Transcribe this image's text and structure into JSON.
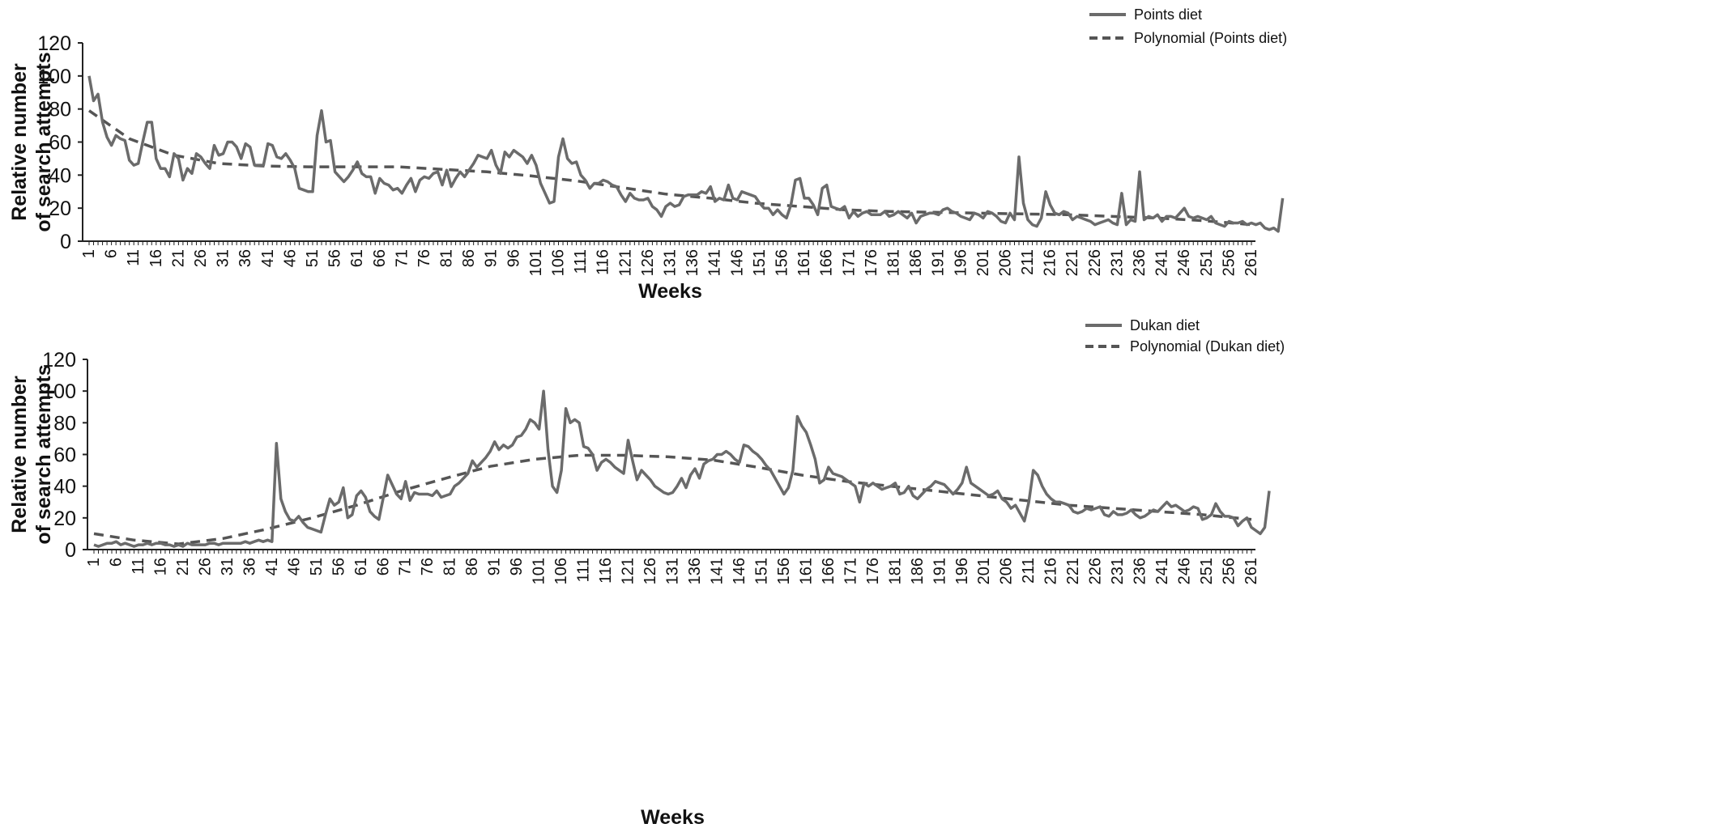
{
  "chart_data": [
    {
      "type": "line",
      "title": "",
      "xlabel": "Weeks",
      "ylabel": "Relative number of search attempts",
      "ylabel_lines": [
        "Relative number",
        "of search attempts"
      ],
      "ylim": [
        0,
        120
      ],
      "yticks": [
        0,
        20,
        40,
        60,
        80,
        100,
        120
      ],
      "xlim": [
        1,
        261
      ],
      "xtick_step": 5,
      "grid": false,
      "legend_position": "top-right",
      "series": [
        {
          "name": "Points diet",
          "style": "solid",
          "color": "#6b6b6b",
          "values": [
            100,
            85,
            89,
            72,
            63,
            58,
            64,
            62,
            61,
            49,
            46,
            47,
            60,
            72,
            72,
            50,
            44,
            44,
            39,
            53,
            50,
            37,
            44,
            41,
            53,
            51,
            47,
            44,
            58,
            52,
            53,
            60,
            60,
            57,
            50,
            59,
            57,
            46,
            46,
            46,
            59,
            58,
            51,
            50,
            53,
            49,
            44,
            32,
            31,
            30,
            30,
            64,
            79,
            60,
            61,
            42,
            39,
            36,
            39,
            43,
            48,
            41,
            39,
            39,
            29,
            38,
            35,
            34,
            31,
            32,
            29,
            34,
            38,
            30,
            37,
            39,
            38,
            41,
            42,
            34,
            43,
            33,
            38,
            42,
            39,
            43,
            47,
            52,
            51,
            50,
            55,
            46,
            41,
            54,
            51,
            55,
            53,
            51,
            47,
            52,
            46,
            35,
            29,
            23,
            24,
            51,
            62,
            50,
            47,
            48,
            40,
            37,
            32,
            35,
            35,
            37,
            36,
            34,
            33,
            28,
            24,
            29,
            26,
            25,
            25,
            26,
            21,
            19,
            15,
            21,
            23,
            21,
            22,
            27,
            28,
            28,
            28,
            30,
            29,
            33,
            24,
            26,
            25,
            34,
            26,
            25,
            30,
            29,
            28,
            27,
            23,
            20,
            20,
            16,
            19,
            16,
            14,
            22,
            37,
            38,
            26,
            26,
            22,
            16,
            32,
            34,
            21,
            20,
            19,
            21,
            14,
            18,
            15,
            17,
            18,
            16,
            16,
            16,
            18,
            15,
            16,
            18,
            16,
            14,
            17,
            11,
            15,
            16,
            17,
            17,
            16,
            19,
            20,
            18,
            17,
            15,
            14,
            13,
            17,
            16,
            14,
            18,
            17,
            15,
            12,
            11,
            17,
            13,
            51,
            23,
            13,
            10,
            9,
            14,
            30,
            22,
            17,
            16,
            18,
            17,
            13,
            15,
            14,
            13,
            12,
            10,
            11,
            12,
            13,
            11,
            10,
            29,
            10,
            13,
            12,
            42,
            13,
            15,
            14,
            16,
            12,
            15,
            15,
            14,
            17,
            20,
            15,
            14,
            15,
            14,
            13,
            15,
            11,
            10,
            9,
            12,
            11,
            11,
            12,
            10,
            11,
            10,
            11,
            8,
            7,
            8,
            6,
            26
          ],
          "trend_points": [
            [
              1,
              79
            ],
            [
              10,
              62
            ],
            [
              20,
              52
            ],
            [
              30,
              47
            ],
            [
              40,
              45.5
            ],
            [
              50,
              45
            ],
            [
              60,
              45
            ],
            [
              70,
              45
            ],
            [
              80,
              43.5
            ],
            [
              90,
              42
            ],
            [
              100,
              39.5
            ],
            [
              110,
              36.5
            ],
            [
              120,
              32.5
            ],
            [
              130,
              28.5
            ],
            [
              140,
              26
            ],
            [
              150,
              23
            ],
            [
              160,
              21
            ],
            [
              170,
              19
            ],
            [
              180,
              18
            ],
            [
              190,
              17.5
            ],
            [
              200,
              17
            ],
            [
              210,
              16.5
            ],
            [
              220,
              16
            ],
            [
              230,
              15
            ],
            [
              240,
              14
            ],
            [
              250,
              12.5
            ],
            [
              261,
              10
            ]
          ]
        },
        {
          "name": "Polynomial (Points diet)",
          "style": "dashed",
          "color": "#555555"
        }
      ]
    },
    {
      "type": "line",
      "title": "",
      "xlabel": "Weeks",
      "ylabel": "Relative number of search attempts",
      "ylabel_lines": [
        "Relative number",
        "of search attempts"
      ],
      "ylim": [
        0,
        120
      ],
      "yticks": [
        0,
        20,
        40,
        60,
        80,
        100,
        120
      ],
      "xlim": [
        1,
        261
      ],
      "xtick_step": 5,
      "grid": false,
      "legend_position": "top-right",
      "series": [
        {
          "name": "Dukan diet",
          "style": "solid",
          "color": "#6b6b6b",
          "values": [
            3,
            2,
            3,
            4,
            4,
            5,
            3,
            4,
            3,
            2,
            3,
            3,
            4,
            3,
            4,
            4,
            3,
            3,
            2,
            3,
            2,
            4,
            3,
            3,
            3,
            3,
            4,
            4,
            3,
            4,
            4,
            4,
            4,
            4,
            5,
            4,
            5,
            6,
            5,
            6,
            5,
            67,
            32,
            24,
            19,
            18,
            21,
            17,
            14,
            13,
            12,
            11,
            22,
            32,
            28,
            30,
            39,
            20,
            22,
            34,
            37,
            33,
            24,
            21,
            19,
            33,
            47,
            41,
            35,
            32,
            43,
            31,
            36,
            35,
            35,
            35,
            34,
            37,
            33,
            34,
            35,
            40,
            42,
            45,
            48,
            56,
            52,
            55,
            58,
            62,
            68,
            63,
            66,
            64,
            66,
            71,
            72,
            76,
            82,
            80,
            76,
            100,
            63,
            40,
            36,
            50,
            89,
            80,
            82,
            80,
            65,
            64,
            60,
            50,
            55,
            57,
            55,
            52,
            50,
            48,
            69,
            56,
            44,
            50,
            47,
            44,
            40,
            38,
            36,
            35,
            36,
            40,
            45,
            39,
            47,
            51,
            45,
            54,
            56,
            57,
            60,
            60,
            62,
            60,
            57,
            55,
            66,
            65,
            62,
            60,
            57,
            53,
            50,
            45,
            40,
            35,
            39,
            50,
            84,
            78,
            74,
            66,
            57,
            42,
            44,
            52,
            48,
            47,
            46,
            44,
            42,
            40,
            30,
            42,
            40,
            42,
            40,
            38,
            39,
            40,
            42,
            35,
            36,
            40,
            34,
            32,
            35,
            38,
            40,
            43,
            42,
            41,
            38,
            35,
            38,
            42,
            52,
            42,
            40,
            38,
            36,
            34,
            35,
            37,
            32,
            30,
            26,
            28,
            23,
            18,
            30,
            50,
            47,
            40,
            35,
            32,
            30,
            30,
            29,
            28,
            24,
            23,
            24,
            26,
            25,
            26,
            27,
            22,
            21,
            24,
            22,
            22,
            23,
            25,
            22,
            20,
            21,
            23,
            25,
            24,
            27,
            30,
            27,
            28,
            26,
            24,
            25,
            27,
            26,
            19,
            20,
            22,
            29,
            24,
            21,
            21,
            20,
            15,
            18,
            20,
            14,
            12,
            10,
            14,
            37
          ],
          "trend_points": [
            [
              1,
              10
            ],
            [
              10,
              6
            ],
            [
              20,
              3.5
            ],
            [
              30,
              7
            ],
            [
              40,
              13
            ],
            [
              50,
              20
            ],
            [
              60,
              28
            ],
            [
              70,
              37
            ],
            [
              80,
              45
            ],
            [
              90,
              52.5
            ],
            [
              100,
              57
            ],
            [
              110,
              59.5
            ],
            [
              120,
              59.5
            ],
            [
              130,
              58.5
            ],
            [
              140,
              56.5
            ],
            [
              150,
              52
            ],
            [
              160,
              47
            ],
            [
              170,
              43
            ],
            [
              180,
              40
            ],
            [
              190,
              37
            ],
            [
              200,
              34
            ],
            [
              210,
              31
            ],
            [
              220,
              28
            ],
            [
              230,
              26
            ],
            [
              240,
              24
            ],
            [
              250,
              22
            ],
            [
              261,
              19
            ]
          ]
        },
        {
          "name": "Polynomial (Dukan diet)",
          "style": "dashed",
          "color": "#555555"
        }
      ]
    }
  ]
}
